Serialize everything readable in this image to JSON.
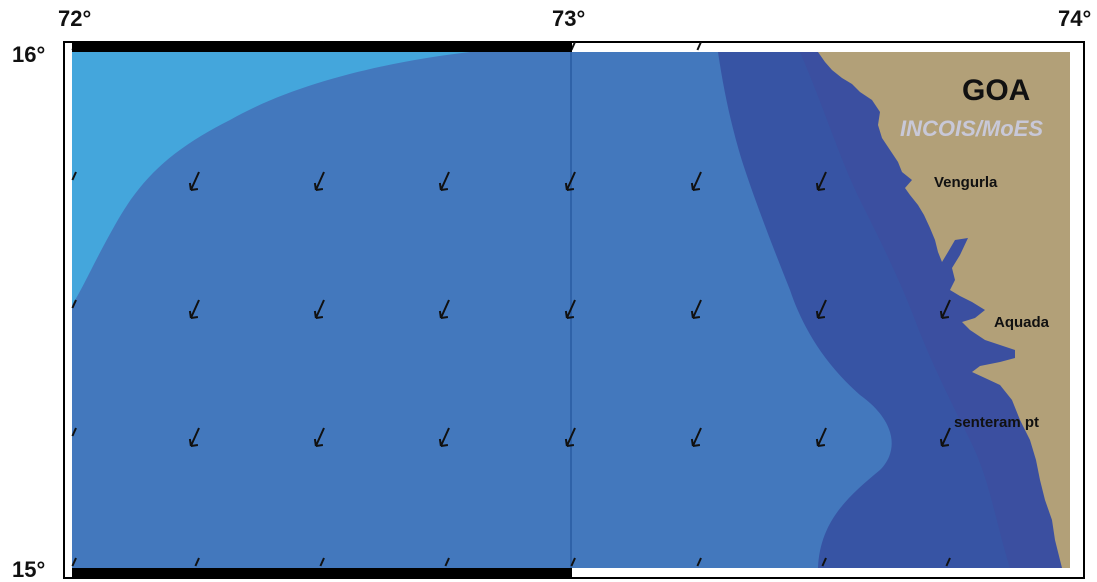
{
  "axes": {
    "x_ticks": [
      "72°",
      "73°",
      "74°"
    ],
    "y_ticks": [
      "16°",
      "15°"
    ]
  },
  "labels": {
    "region": "GOA",
    "credit": "INCOIS/MoES",
    "places": [
      "Vengurla",
      "Aquada",
      "senteram pt"
    ]
  },
  "colors": {
    "deep_zone": "#44a6dc",
    "mid_zone": "#4378bd",
    "near_shore_zone": "#3754a4",
    "coast_band": "#3b4fa0",
    "land": "#b2a078",
    "arrow": "#111111"
  },
  "current_vectors": {
    "direction": "southwest",
    "rows": 5,
    "cols": 8
  }
}
